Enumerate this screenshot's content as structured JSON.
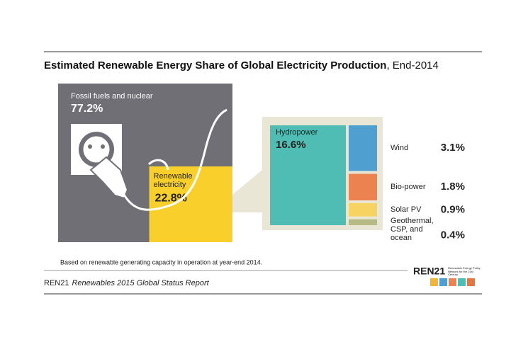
{
  "chart_data": {
    "type": "treemap",
    "title": "Estimated Renewable Energy Share of Global Electricity Production",
    "title_suffix": ", End-2014",
    "categories": [
      "Fossil fuels and nuclear",
      "Renewable electricity"
    ],
    "values": [
      77.2,
      22.8
    ],
    "value_labels": [
      "77.2%",
      "22.8%"
    ],
    "colors": [
      "#706f76",
      "#f8cf2b"
    ],
    "breakdown": {
      "categories": [
        "Hydropower",
        "Wind",
        "Bio-power",
        "Solar PV",
        "Geothermal, CSP, and ocean"
      ],
      "values": [
        16.6,
        3.1,
        1.8,
        0.9,
        0.4
      ],
      "value_labels": [
        "16.6%",
        "3.1%",
        "1.8%",
        "0.9%",
        "0.4%"
      ],
      "colors": [
        "#4fbdb3",
        "#4f9fd1",
        "#ec8250",
        "#f7d462",
        "#b6bb86"
      ]
    },
    "note": "Based on renewable generating capacity in operation at year-end 2014.",
    "source": "REN21",
    "source_title": "Renewables 2015 Global Status Report",
    "logo": "REN21",
    "logo_tagline": "Renewable Energy Policy Network for the 21st Century"
  }
}
